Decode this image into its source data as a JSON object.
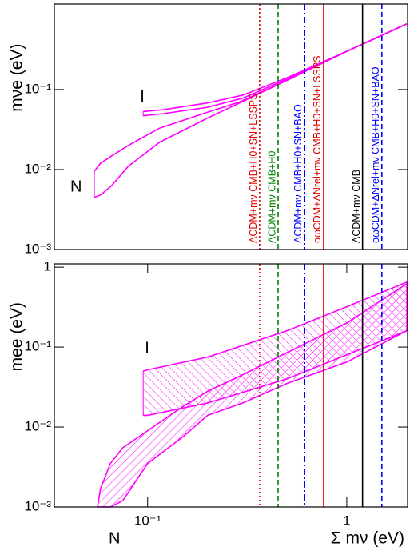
{
  "chart_data": [
    {
      "type": "band",
      "ylabel": "mνe (eV)",
      "log_x": true,
      "log_y": true,
      "xlim": [
        0.034,
        2.02
      ],
      "ylim": [
        0.001,
        1.17
      ],
      "yticks": [
        {
          "value": 0.001,
          "label": "10⁻³"
        },
        {
          "value": 0.01,
          "label": "10⁻²"
        },
        {
          "value": 0.1,
          "label": "10⁻¹"
        }
      ],
      "series": [
        {
          "name": "I",
          "color": "#ff00ff",
          "hatch": "none",
          "x": [
            0.095,
            0.12,
            0.2,
            0.3,
            0.5,
            1,
            2
          ],
          "upper": [
            0.053,
            0.056,
            0.068,
            0.085,
            0.14,
            0.3,
            0.66
          ],
          "lower": [
            0.047,
            0.05,
            0.06,
            0.078,
            0.135,
            0.3,
            0.66
          ]
        },
        {
          "name": "N",
          "color": "#ff00ff",
          "hatch": "none",
          "x": [
            0.054,
            0.058,
            0.066,
            0.08,
            0.115,
            0.2,
            0.29,
            0.5,
            1,
            2
          ],
          "upper": [
            0.0095,
            0.012,
            0.0148,
            0.02,
            0.033,
            0.052,
            0.07,
            0.13,
            0.3,
            0.66
          ],
          "lower": [
            0.0045,
            0.0048,
            0.0063,
            0.011,
            0.022,
            0.044,
            0.068,
            0.13,
            0.3,
            0.66
          ]
        }
      ],
      "vertical_lines": [
        {
          "x": 0.365,
          "label": "ΛCDM+mν CMB+H0+SN+LSSPS",
          "color": "#e00000",
          "style": "dotted"
        },
        {
          "x": 0.452,
          "label": "ΛCDM+mν CMB+H0",
          "color": "#008000",
          "style": "dashed"
        },
        {
          "x": 0.612,
          "label": "ΛCDM+mν CMB+H0+SN+BAO",
          "color": "#0000ff",
          "style": "dashdot"
        },
        {
          "x": 0.765,
          "label": "oωCDM+ΔNrel+mν CMB+H0+SN+LSSPS",
          "color": "#e00000",
          "style": "solid"
        },
        {
          "x": 1.2,
          "label": "ΛCDM+mν CMB",
          "color": "#000000",
          "style": "solid"
        },
        {
          "x": 1.5,
          "label": "oωCDM+ΔNrel+mν CMB+H0+SN+BAO",
          "color": "#0000ff",
          "style": "dashed"
        }
      ]
    },
    {
      "type": "band",
      "ylabel": "mee (eV)",
      "xlabel": "Σ mν (eV)",
      "log_x": true,
      "log_y": true,
      "xlim": [
        0.034,
        2.02
      ],
      "ylim": [
        0.001,
        1.1
      ],
      "xticks": [
        {
          "value": 0.1,
          "label": "10⁻¹"
        },
        1
      ],
      "yticks": [
        {
          "value": 0.001,
          "label": "10⁻³"
        },
        {
          "value": 0.01,
          "label": "10⁻²"
        },
        {
          "value": 0.1,
          "label": "10⁻¹"
        },
        1
      ],
      "series": [
        {
          "name": "I",
          "color": "#ff00ff",
          "hatch": "back",
          "x": [
            0.095,
            0.1,
            0.2,
            0.5,
            1,
            2
          ],
          "upper": [
            0.05,
            0.052,
            0.075,
            0.16,
            0.32,
            0.65
          ],
          "lower": [
            0.014,
            0.014,
            0.02,
            0.04,
            0.08,
            0.16
          ]
        },
        {
          "name": "N",
          "color": "#ff00ff",
          "hatch": "forward",
          "x": [
            0.056,
            0.058,
            0.065,
            0.075,
            0.1,
            0.15,
            0.2,
            0.3,
            0.5,
            1,
            2
          ],
          "upper": [
            0.001,
            0.0017,
            0.0035,
            0.0055,
            0.009,
            0.018,
            0.028,
            0.045,
            0.085,
            0.2,
            0.62
          ],
          "lower": [
            0.001,
            0.001,
            0.001,
            0.0012,
            0.0035,
            0.0075,
            0.014,
            0.02,
            0.035,
            0.065,
            0.16
          ]
        }
      ]
    }
  ]
}
